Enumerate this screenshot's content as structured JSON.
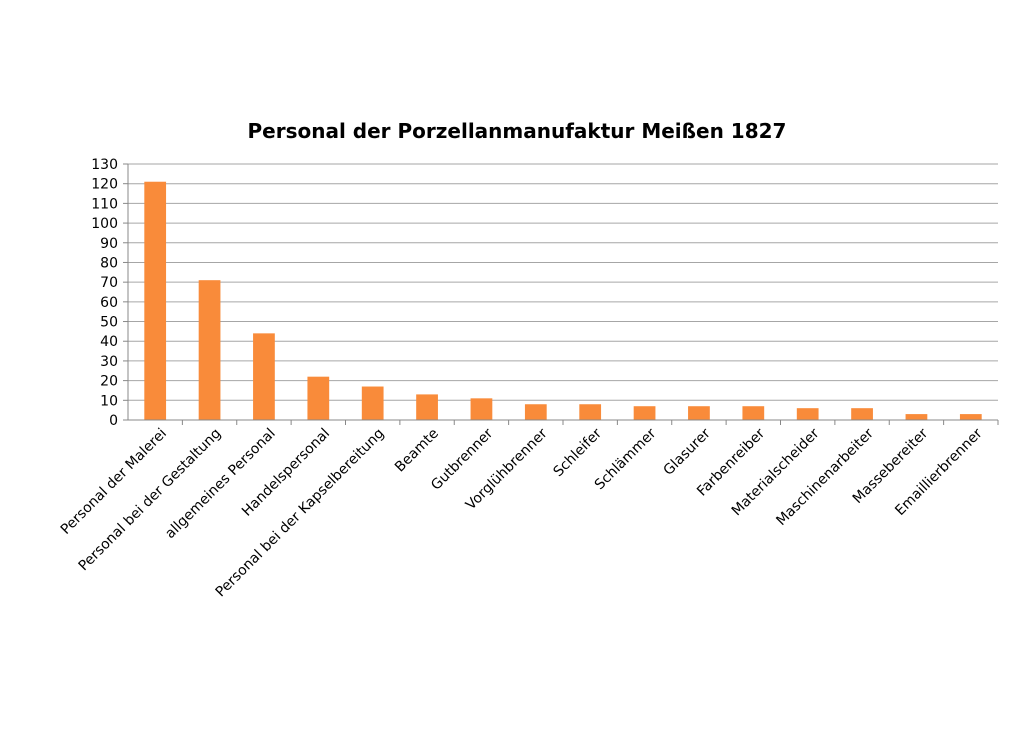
{
  "chart_data": {
    "type": "bar",
    "title": "Personal der Porzellanmanufaktur Meißen 1827",
    "xlabel": "",
    "ylabel": "",
    "ylim": [
      0,
      130
    ],
    "ytick_step": 10,
    "grid": true,
    "legend": "none",
    "bar_color": "#f98b3a",
    "gridline_color": "#a6a6a6",
    "axis_color": "#888888",
    "categories": [
      "Personal der Malerei",
      "Personal bei der Gestaltung",
      "allgemeines Personal",
      "Handelspersonal",
      "Personal bei der Kapselbereitung",
      "Beamte",
      "Gutbrenner",
      "Vorglühbrenner",
      "Schleifer",
      "Schlämmer",
      "Glasurer",
      "Farbenreiber",
      "Materialscheider",
      "Maschinenarbeiter",
      "Massebereiter",
      "Emaillierbrenner"
    ],
    "values": [
      121,
      71,
      44,
      22,
      17,
      13,
      11,
      8,
      8,
      7,
      7,
      7,
      6,
      6,
      3,
      3
    ]
  }
}
